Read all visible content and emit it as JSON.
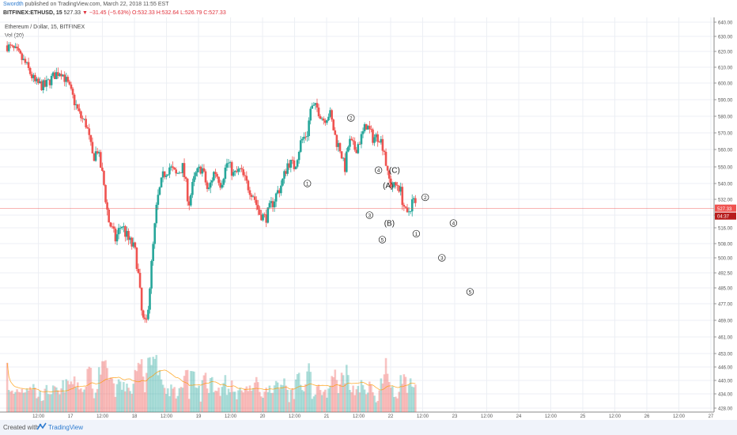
{
  "header": {
    "user": "Swordth",
    "published": "published on TradingView.com, March 22, 2018 11:55 EST",
    "symbol": "BITFINEX:ETHUSD, 15",
    "last": "527.33",
    "arrow": "▼",
    "change": "−31.45 (−5.63%)",
    "ohlc": "O:532.33 H:532.64 L:526.79 C:527.33"
  },
  "legend": {
    "title": "Ethereum / Dollar, 15, BITFINEX",
    "volume": "Vol (20)"
  },
  "price_tag": "527.33",
  "time_tag": "04:37",
  "footer": {
    "created": "Created with",
    "brand": "TradingView"
  },
  "colors": {
    "up": "#26a69a",
    "down": "#ef5350",
    "grid": "#eceff4",
    "priceline": "#ef5350",
    "vol_ma": "#ff9800"
  },
  "chart_data": {
    "type": "candlestick",
    "yticks": [
      640,
      630,
      620,
      610,
      600,
      590,
      580,
      570,
      560,
      550,
      540,
      532,
      524,
      516,
      508,
      500,
      492.5,
      485,
      477,
      469,
      461,
      453,
      446,
      440,
      434,
      428
    ],
    "xticks": [
      {
        "label": "12:00",
        "t": 0.5
      },
      {
        "label": "17",
        "t": 1
      },
      {
        "label": "12:00",
        "t": 1.5
      },
      {
        "label": "18",
        "t": 2
      },
      {
        "label": "12:00",
        "t": 2.5
      },
      {
        "label": "19",
        "t": 3
      },
      {
        "label": "12:00",
        "t": 3.5
      },
      {
        "label": "20",
        "t": 4
      },
      {
        "label": "12:00",
        "t": 4.5
      },
      {
        "label": "21",
        "t": 5
      },
      {
        "label": "12:00",
        "t": 5.5
      },
      {
        "label": "22",
        "t": 6
      },
      {
        "label": "12:00",
        "t": 6.5
      },
      {
        "label": "23",
        "t": 7
      },
      {
        "label": "12:00",
        "t": 7.5
      },
      {
        "label": "24",
        "t": 8
      },
      {
        "label": "12:00",
        "t": 8.5
      },
      {
        "label": "25",
        "t": 9
      },
      {
        "label": "12:00",
        "t": 9.5
      },
      {
        "label": "26",
        "t": 10
      },
      {
        "label": "12:00",
        "t": 10.5
      },
      {
        "label": "27",
        "t": 11
      }
    ],
    "price_path": [
      [
        0.0,
        624
      ],
      [
        0.15,
        620
      ],
      [
        0.3,
        612
      ],
      [
        0.45,
        600
      ],
      [
        0.6,
        598
      ],
      [
        0.75,
        605
      ],
      [
        0.85,
        608
      ],
      [
        0.95,
        600
      ],
      [
        1.05,
        590
      ],
      [
        1.15,
        580
      ],
      [
        1.25,
        575
      ],
      [
        1.35,
        555
      ],
      [
        1.42,
        560
      ],
      [
        1.5,
        545
      ],
      [
        1.6,
        520
      ],
      [
        1.7,
        510
      ],
      [
        1.8,
        518
      ],
      [
        1.9,
        510
      ],
      [
        2.0,
        505
      ],
      [
        2.05,
        495
      ],
      [
        2.12,
        470
      ],
      [
        2.18,
        465
      ],
      [
        2.25,
        490
      ],
      [
        2.35,
        530
      ],
      [
        2.45,
        545
      ],
      [
        2.55,
        550
      ],
      [
        2.65,
        545
      ],
      [
        2.75,
        550
      ],
      [
        2.85,
        530
      ],
      [
        2.95,
        545
      ],
      [
        3.05,
        550
      ],
      [
        3.15,
        535
      ],
      [
        3.25,
        548
      ],
      [
        3.35,
        540
      ],
      [
        3.45,
        553
      ],
      [
        3.55,
        545
      ],
      [
        3.65,
        548
      ],
      [
        3.75,
        540
      ],
      [
        3.85,
        535
      ],
      [
        3.95,
        525
      ],
      [
        4.05,
        522
      ],
      [
        4.15,
        530
      ],
      [
        4.3,
        540
      ],
      [
        4.4,
        553
      ],
      [
        4.5,
        550
      ],
      [
        4.6,
        565
      ],
      [
        4.7,
        570
      ],
      [
        4.75,
        585
      ],
      [
        4.85,
        585
      ],
      [
        4.95,
        578
      ],
      [
        5.05,
        582
      ],
      [
        5.15,
        565
      ],
      [
        5.22,
        560
      ],
      [
        5.28,
        548
      ],
      [
        5.35,
        565
      ],
      [
        5.45,
        560
      ],
      [
        5.55,
        568
      ],
      [
        5.62,
        575
      ],
      [
        5.72,
        567
      ],
      [
        5.82,
        568
      ],
      [
        5.9,
        560
      ],
      [
        5.95,
        545
      ],
      [
        6.0,
        540
      ],
      [
        6.05,
        538
      ],
      [
        6.12,
        540
      ],
      [
        6.2,
        530
      ],
      [
        6.25,
        522
      ],
      [
        6.3,
        528
      ],
      [
        6.35,
        532
      ],
      [
        6.4,
        527.33
      ]
    ],
    "waves": [
      {
        "label": "①",
        "t": 4.7,
        "p": 540
      },
      {
        "label": "②",
        "t": 5.38,
        "p": 579
      },
      {
        "label": "③",
        "t": 5.67,
        "p": 524
      },
      {
        "label": "④",
        "t": 5.81,
        "p": 548
      },
      {
        "label": "⑤",
        "t": 5.87,
        "p": 510
      },
      {
        "label": "(A)",
        "t": 5.96,
        "p": 539
      },
      {
        "label": "(B)",
        "t": 5.98,
        "p": 519
      },
      {
        "label": "(C)",
        "t": 6.06,
        "p": 548
      },
      {
        "label": "②",
        "t": 6.54,
        "p": 533
      },
      {
        "label": "①",
        "t": 6.4,
        "p": 513
      },
      {
        "label": "④",
        "t": 6.98,
        "p": 519
      },
      {
        "label": "③",
        "t": 6.8,
        "p": 500
      },
      {
        "label": "⑤",
        "t": 7.24,
        "p": 483
      }
    ]
  }
}
